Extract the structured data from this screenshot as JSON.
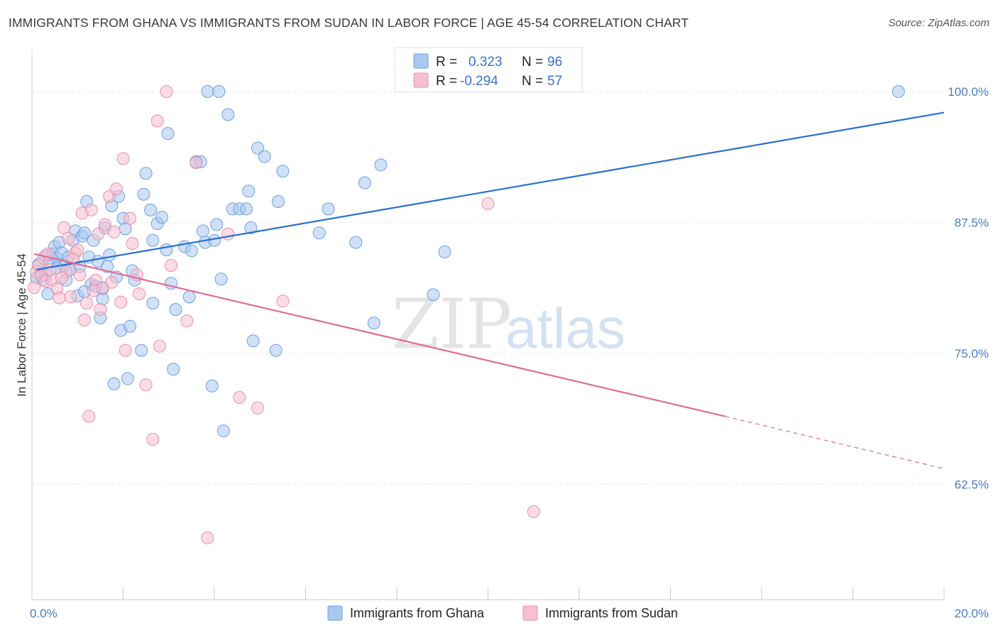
{
  "header": {
    "title": "IMMIGRANTS FROM GHANA VS IMMIGRANTS FROM SUDAN IN LABOR FORCE | AGE 45-54 CORRELATION CHART",
    "source": "Source: ZipAtlas.com"
  },
  "watermark": {
    "zip": "ZIP",
    "atlas": "atlas"
  },
  "chart_data": {
    "type": "scatter",
    "ylabel": "In Labor Force | Age 45-54",
    "xlim": [
      0,
      20
    ],
    "ylim": [
      51.5,
      104
    ],
    "x_tick_labels": [
      {
        "value": 0,
        "label": "0.0%"
      },
      {
        "value": 20,
        "label": "20.0%"
      }
    ],
    "y_tick_labels": [
      {
        "value": 100,
        "label": "100.0%"
      },
      {
        "value": 87.5,
        "label": "87.5%"
      },
      {
        "value": 75,
        "label": "75.0%"
      },
      {
        "value": 62.5,
        "label": "62.5%"
      }
    ],
    "grid": true,
    "legend_top": [
      {
        "r_label": "R =",
        "r_value": "0.323",
        "n_label": "N =",
        "n_value": "96",
        "color": "#a9c8f0",
        "stroke": "#6e9fe0"
      },
      {
        "r_label": "R =",
        "r_value": "-0.294",
        "n_label": "N =",
        "n_value": "57",
        "color": "#f7bfd0",
        "stroke": "#ea8fae"
      }
    ],
    "series": [
      {
        "name": "Immigrants from Ghana",
        "color": "#a9c8f0",
        "stroke": "#6e9fe0",
        "trend_color": "#2a6fd0",
        "trend": {
          "x0": 0.1,
          "y0": 83.0,
          "x1": 20.0,
          "y1": 98.0
        },
        "points": [
          [
            0.1,
            82.2
          ],
          [
            0.15,
            83.5
          ],
          [
            0.2,
            82.8
          ],
          [
            0.25,
            82.0
          ],
          [
            0.3,
            84.3
          ],
          [
            0.35,
            80.7
          ],
          [
            0.4,
            83.9
          ],
          [
            0.45,
            84.5
          ],
          [
            0.5,
            85.2
          ],
          [
            0.55,
            84.1
          ],
          [
            0.6,
            85.6
          ],
          [
            0.65,
            84.6
          ],
          [
            0.7,
            83.4
          ],
          [
            0.75,
            82.0
          ],
          [
            0.8,
            84.2
          ],
          [
            0.85,
            83.0
          ],
          [
            0.9,
            85.8
          ],
          [
            0.95,
            86.7
          ],
          [
            1.0,
            80.5
          ],
          [
            1.05,
            83.3
          ],
          [
            1.1,
            86.2
          ],
          [
            1.15,
            86.5
          ],
          [
            1.2,
            89.5
          ],
          [
            1.25,
            84.2
          ],
          [
            1.3,
            81.6
          ],
          [
            1.35,
            85.8
          ],
          [
            1.4,
            81.4
          ],
          [
            1.45,
            83.8
          ],
          [
            1.5,
            78.4
          ],
          [
            1.55,
            80.2
          ],
          [
            1.6,
            87.0
          ],
          [
            1.65,
            83.3
          ],
          [
            1.7,
            84.4
          ],
          [
            1.75,
            89.1
          ],
          [
            1.8,
            72.1
          ],
          [
            1.85,
            82.3
          ],
          [
            1.9,
            90.0
          ],
          [
            1.95,
            77.2
          ],
          [
            2.0,
            87.9
          ],
          [
            2.05,
            86.9
          ],
          [
            2.1,
            72.6
          ],
          [
            2.15,
            77.6
          ],
          [
            2.2,
            82.9
          ],
          [
            2.25,
            82.0
          ],
          [
            2.4,
            75.3
          ],
          [
            2.45,
            90.2
          ],
          [
            2.5,
            92.2
          ],
          [
            2.6,
            88.7
          ],
          [
            2.65,
            85.8
          ],
          [
            2.75,
            87.4
          ],
          [
            2.85,
            88.0
          ],
          [
            2.95,
            84.9
          ],
          [
            2.98,
            96.0
          ],
          [
            3.05,
            81.7
          ],
          [
            3.1,
            73.5
          ],
          [
            3.15,
            79.2
          ],
          [
            3.35,
            85.2
          ],
          [
            3.5,
            84.8
          ],
          [
            3.6,
            93.3
          ],
          [
            3.7,
            93.3
          ],
          [
            3.75,
            86.7
          ],
          [
            3.8,
            85.6
          ],
          [
            3.85,
            100.0
          ],
          [
            3.95,
            71.9
          ],
          [
            4.0,
            85.8
          ],
          [
            4.05,
            87.3
          ],
          [
            4.1,
            100.0
          ],
          [
            4.15,
            82.1
          ],
          [
            4.2,
            67.6
          ],
          [
            4.3,
            97.8
          ],
          [
            4.4,
            88.8
          ],
          [
            4.55,
            88.8
          ],
          [
            4.7,
            88.8
          ],
          [
            4.75,
            90.5
          ],
          [
            4.8,
            87.0
          ],
          [
            4.85,
            76.2
          ],
          [
            4.95,
            94.6
          ],
          [
            5.1,
            93.8
          ],
          [
            5.35,
            75.3
          ],
          [
            5.4,
            89.5
          ],
          [
            5.5,
            92.4
          ],
          [
            6.3,
            86.5
          ],
          [
            6.5,
            88.8
          ],
          [
            7.1,
            85.6
          ],
          [
            7.3,
            91.3
          ],
          [
            7.5,
            77.9
          ],
          [
            7.65,
            93.0
          ],
          [
            8.8,
            80.6
          ],
          [
            9.05,
            84.7
          ],
          [
            19.0,
            100.0
          ],
          [
            0.3,
            82.5
          ],
          [
            1.15,
            80.9
          ],
          [
            1.55,
            81.2
          ],
          [
            2.65,
            79.8
          ],
          [
            3.45,
            80.4
          ],
          [
            0.55,
            83.2
          ]
        ]
      },
      {
        "name": "Immigrants from Sudan",
        "color": "#f7bfd0",
        "stroke": "#ea8fae",
        "trend_color": "#e26a98",
        "trend": {
          "x0": 0.05,
          "y0": 84.5,
          "x1": 15.2,
          "y1": 69.0
        },
        "trend_dashed": {
          "x0": 15.2,
          "y0": 69.0,
          "x1": 20.0,
          "y1": 64.0
        },
        "points": [
          [
            0.05,
            81.3
          ],
          [
            0.1,
            82.8
          ],
          [
            0.15,
            83.4
          ],
          [
            0.2,
            82.4
          ],
          [
            0.25,
            84.1
          ],
          [
            0.3,
            81.9
          ],
          [
            0.35,
            84.5
          ],
          [
            0.45,
            82.0
          ],
          [
            0.55,
            81.2
          ],
          [
            0.6,
            80.3
          ],
          [
            0.7,
            87.0
          ],
          [
            0.75,
            82.8
          ],
          [
            0.8,
            86.0
          ],
          [
            0.85,
            80.4
          ],
          [
            0.95,
            84.6
          ],
          [
            1.0,
            84.9
          ],
          [
            1.05,
            82.5
          ],
          [
            1.1,
            88.4
          ],
          [
            1.15,
            78.2
          ],
          [
            1.2,
            79.8
          ],
          [
            1.25,
            69.0
          ],
          [
            1.3,
            88.7
          ],
          [
            1.4,
            82.0
          ],
          [
            1.45,
            86.4
          ],
          [
            1.5,
            79.2
          ],
          [
            1.55,
            81.3
          ],
          [
            1.6,
            87.3
          ],
          [
            1.7,
            90.0
          ],
          [
            1.75,
            81.8
          ],
          [
            1.8,
            86.6
          ],
          [
            1.85,
            90.7
          ],
          [
            1.95,
            79.9
          ],
          [
            2.0,
            93.6
          ],
          [
            2.05,
            75.3
          ],
          [
            2.15,
            87.9
          ],
          [
            2.2,
            85.5
          ],
          [
            2.3,
            82.5
          ],
          [
            2.35,
            80.7
          ],
          [
            2.5,
            72.0
          ],
          [
            2.65,
            66.8
          ],
          [
            2.75,
            97.2
          ],
          [
            2.8,
            75.7
          ],
          [
            2.95,
            100.0
          ],
          [
            3.05,
            83.4
          ],
          [
            3.4,
            78.1
          ],
          [
            3.6,
            93.2
          ],
          [
            3.85,
            57.4
          ],
          [
            4.3,
            86.4
          ],
          [
            4.55,
            70.8
          ],
          [
            4.95,
            69.8
          ],
          [
            5.5,
            80.0
          ],
          [
            10.0,
            89.3
          ],
          [
            11.0,
            59.9
          ],
          [
            0.4,
            83.0
          ],
          [
            0.9,
            84.0
          ],
          [
            1.35,
            81.0
          ],
          [
            0.65,
            82.2
          ]
        ]
      }
    ]
  }
}
